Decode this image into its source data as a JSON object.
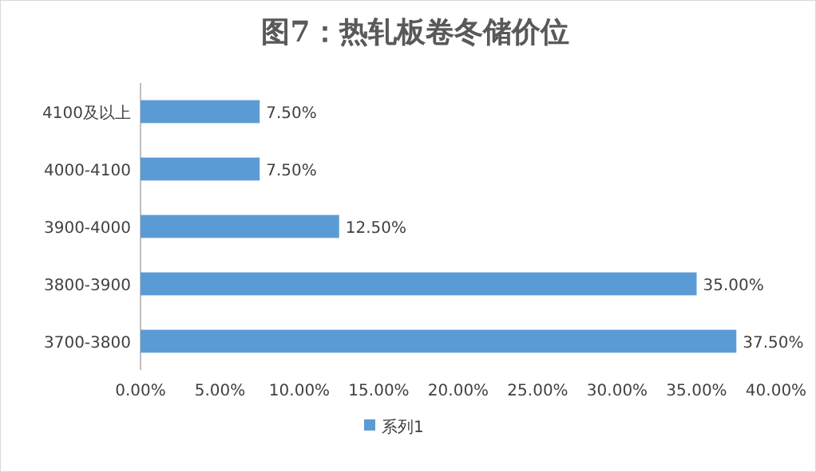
{
  "chart_data": {
    "type": "bar",
    "orientation": "horizontal",
    "title": "图7：热轧板卷冬储价位",
    "categories": [
      "4100及以上",
      "4000-4100",
      "3900-4000",
      "3800-3900",
      "3700-3800"
    ],
    "series": [
      {
        "name": "系列1",
        "color": "#5b9bd5",
        "values": [
          7.5,
          7.5,
          12.5,
          35,
          37.5
        ],
        "value_labels": [
          "7.50%",
          "7.50%",
          "12.50%",
          "35.00%",
          "37.50%"
        ]
      }
    ],
    "xlim": [
      0,
      40
    ],
    "xticks": [
      {
        "value": 0,
        "label": "0.00%"
      },
      {
        "value": 5,
        "label": "5.00%"
      },
      {
        "value": 10,
        "label": "10.00%"
      },
      {
        "value": 15,
        "label": "15.00%"
      },
      {
        "value": 20,
        "label": "20.00%"
      },
      {
        "value": 25,
        "label": "25.00%"
      },
      {
        "value": 30,
        "label": "30.00%"
      },
      {
        "value": 35,
        "label": "35.00%"
      },
      {
        "value": 40,
        "label": "40.00%"
      }
    ],
    "grid": false,
    "legend": "bottom"
  }
}
